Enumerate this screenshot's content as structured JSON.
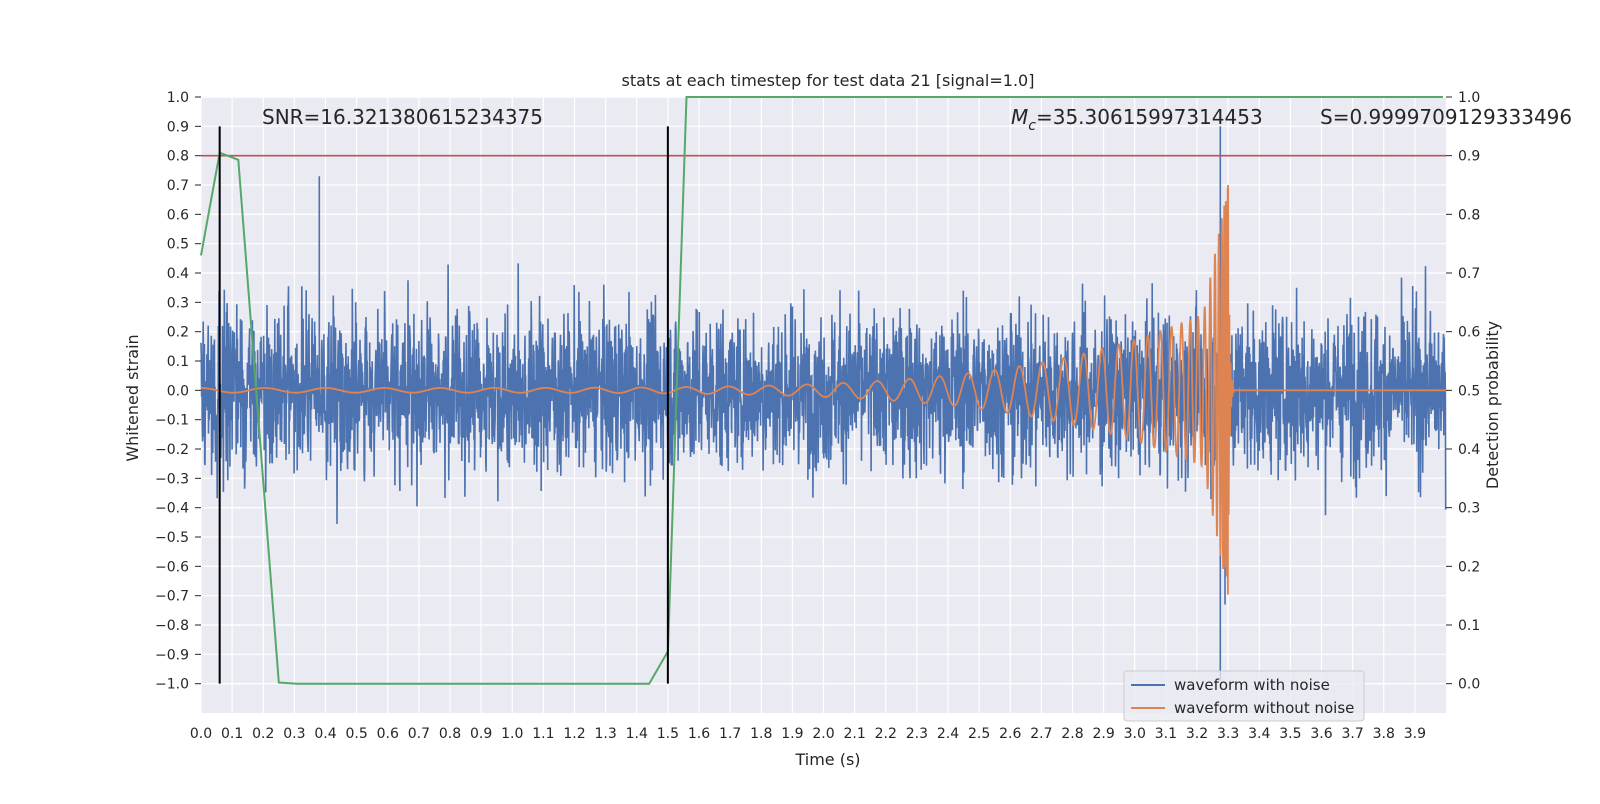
{
  "chart_data": {
    "type": "line",
    "title": "stats at each timestep for test data 21 [signal=1.0]",
    "xlabel": "Time (s)",
    "ylabel_left": "Whitened strain",
    "ylabel_right": "Detection probability",
    "xlim": [
      0.0,
      4.0
    ],
    "ylim_left": [
      -1.1,
      1.0
    ],
    "ylim_right": [
      -0.05,
      1.0
    ],
    "x_ticks": [
      0.0,
      0.1,
      0.2,
      0.3,
      0.4,
      0.5,
      0.6,
      0.7,
      0.8,
      0.9,
      1.0,
      1.1,
      1.2,
      1.3,
      1.4,
      1.5,
      1.6,
      1.7,
      1.8,
      1.9,
      2.0,
      2.1,
      2.2,
      2.3,
      2.4,
      2.5,
      2.6,
      2.7,
      2.8,
      2.9,
      3.0,
      3.1,
      3.2,
      3.3,
      3.4,
      3.5,
      3.6,
      3.7,
      3.8,
      3.9
    ],
    "x_tick_labels": [
      "0.0",
      "0.1",
      "0.2",
      "0.3",
      "0.4",
      "0.5",
      "0.6",
      "0.7",
      "0.8",
      "0.9",
      "1.0",
      "1.1",
      "1.2",
      "1.3",
      "1.4",
      "1.5",
      "1.6",
      "1.7",
      "1.8",
      "1.9",
      "2.0",
      "2.1",
      "2.2",
      "2.3",
      "2.4",
      "2.5",
      "2.6",
      "2.7",
      "2.8",
      "2.9",
      "3.0",
      "3.1",
      "3.2",
      "3.3",
      "3.4",
      "3.5",
      "3.6",
      "3.7",
      "3.8",
      "3.9"
    ],
    "y_left_ticks": [
      1.0,
      0.9,
      0.8,
      0.7,
      0.6,
      0.5,
      0.4,
      0.3,
      0.2,
      0.1,
      0.0,
      -0.1,
      -0.2,
      -0.3,
      -0.4,
      -0.5,
      -0.6,
      -0.7,
      -0.8,
      -0.9,
      -1.0
    ],
    "y_left_tick_labels": [
      "1.0",
      "0.9",
      "0.8",
      "0.7",
      "0.6",
      "0.5",
      "0.4",
      "0.3",
      "0.2",
      "0.1",
      "0.0",
      "−0.1",
      "−0.2",
      "−0.3",
      "−0.4",
      "−0.5",
      "−0.6",
      "−0.7",
      "−0.8",
      "−0.9",
      "−1.0"
    ],
    "y_right_ticks": [
      1.0,
      0.9,
      0.8,
      0.7,
      0.6,
      0.5,
      0.4,
      0.3,
      0.2,
      0.1,
      0.0
    ],
    "y_right_tick_labels": [
      "1.0",
      "0.9",
      "0.8",
      "0.7",
      "0.6",
      "0.5",
      "0.4",
      "0.3",
      "0.2",
      "0.1",
      "0.0"
    ],
    "grid": true,
    "legend_placement": "lower-right",
    "annotations": {
      "snr": "SNR=16.321380615234375",
      "mc_symbol": "M",
      "mc_subscript": "c",
      "mc_value": "=35.30615997314453",
      "s_value": "S=0.9999709129333496"
    },
    "series": [
      {
        "name": "waveform with noise",
        "axis": "left",
        "color": "#4c72b0",
        "description_range": [
          -1.0,
          0.9
        ],
        "peak_points": [
          [
            0.38,
            0.73
          ],
          [
            3.275,
            0.9
          ],
          [
            3.275,
            -0.99
          ],
          [
            3.29,
            -0.73
          ]
        ]
      },
      {
        "name": "waveform without noise",
        "axis": "left",
        "color": "#dd8452",
        "chirp": {
          "t_start": 0.0,
          "t_merger": 3.3,
          "frequency_start_hz": 8,
          "early_amplitude": 0.008,
          "pre_merger_amplitude": 0.3,
          "peak_amplitude": 0.7,
          "peak_negative": -0.72,
          "ringdown_end": 3.32
        }
      },
      {
        "name": "detection probability",
        "axis": "right",
        "color": "#55a868",
        "x": [
          0.0,
          0.06,
          0.12,
          0.25,
          0.31,
          1.44,
          1.5,
          1.56,
          3.99
        ],
        "y": [
          0.73,
          0.905,
          0.893,
          0.002,
          0.0,
          0.0,
          0.055,
          1.0,
          1.0
        ]
      }
    ],
    "threshold": {
      "axis": "right",
      "value": 0.9,
      "color": "#c44e52"
    },
    "vertical_markers": {
      "x": [
        0.06,
        1.5
      ],
      "y_range": [
        -1.0,
        0.9
      ],
      "color": "#000000"
    }
  }
}
